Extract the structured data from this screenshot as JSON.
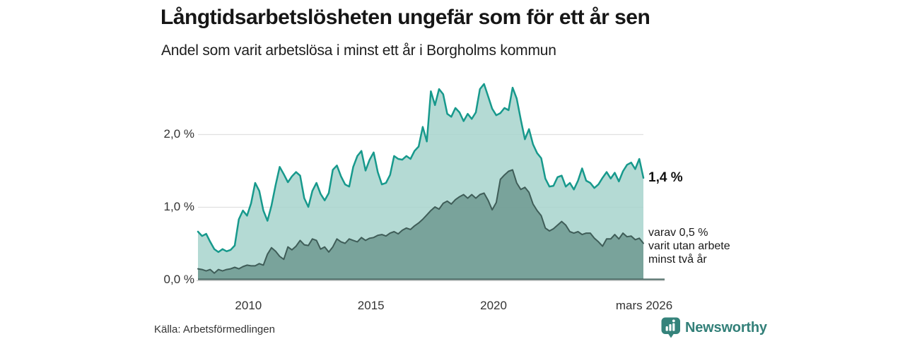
{
  "header": {
    "title": "Långtidsarbetslösheten ungefär som för ett år sen",
    "subtitle": "Andel som varit arbetslösa i minst ett år i Borgholms kommun"
  },
  "annotations": {
    "last_value_label": "1,4 %",
    "secondary_label_lines": [
      "varav 0,5 %",
      "varit utan arbete",
      "minst två år"
    ]
  },
  "footer": {
    "source": "Källa: Arbetsförmedlingen",
    "brand_name": "Newsworthy"
  },
  "colors": {
    "accent_line": "#17998c",
    "accent_fill": "rgba(167,212,205,0.85)",
    "dark_line": "#3f5d58",
    "dark_fill": "rgba(111,153,145,0.85)",
    "grid": "#e0e0e0",
    "axis": "#46635e",
    "axis_shadow": "#c8c8c8",
    "brand": "#338079",
    "text": "#333333"
  },
  "chart_data": {
    "type": "area",
    "title": "Långtidsarbetslösheten ungefär som för ett år sen",
    "subtitle": "Andel som varit arbetslösa i minst ett år i Borgholms kommun",
    "unit": "%",
    "x_start_year": 2008.0,
    "x_end_year": 2026.17,
    "x_ticks": [
      {
        "label": "2010",
        "year": 2010
      },
      {
        "label": "2015",
        "year": 2015
      },
      {
        "label": "2020",
        "year": 2020
      },
      {
        "label": "mars 2026",
        "year": 2026.17
      }
    ],
    "y_ticks": [
      {
        "label": "0,0 %",
        "value": 0
      },
      {
        "label": "1,0 %",
        "value": 1
      },
      {
        "label": "2,0 %",
        "value": 2
      }
    ],
    "ylim": [
      0,
      2.78
    ],
    "grid": true,
    "legend_position": "right-annotations",
    "series": [
      {
        "name": "Andel som varit arbetslösa i minst ett år",
        "last_value": 1.4,
        "values": [
          0.66,
          0.6,
          0.63,
          0.52,
          0.42,
          0.38,
          0.42,
          0.39,
          0.41,
          0.47,
          0.83,
          0.95,
          0.88,
          1.05,
          1.33,
          1.22,
          0.95,
          0.81,
          1.02,
          1.3,
          1.55,
          1.45,
          1.34,
          1.42,
          1.48,
          1.43,
          1.12,
          1.0,
          1.22,
          1.33,
          1.18,
          1.09,
          1.19,
          1.51,
          1.57,
          1.42,
          1.31,
          1.28,
          1.55,
          1.7,
          1.77,
          1.5,
          1.65,
          1.75,
          1.48,
          1.31,
          1.33,
          1.44,
          1.7,
          1.66,
          1.65,
          1.7,
          1.66,
          1.77,
          1.83,
          2.1,
          1.9,
          2.59,
          2.4,
          2.62,
          2.55,
          2.28,
          2.24,
          2.36,
          2.3,
          2.18,
          2.28,
          2.21,
          2.3,
          2.62,
          2.69,
          2.52,
          2.35,
          2.26,
          2.29,
          2.36,
          2.33,
          2.64,
          2.49,
          2.2,
          1.93,
          2.07,
          1.86,
          1.74,
          1.67,
          1.39,
          1.28,
          1.29,
          1.41,
          1.43,
          1.28,
          1.33,
          1.24,
          1.36,
          1.53,
          1.36,
          1.33,
          1.26,
          1.31,
          1.4,
          1.48,
          1.39,
          1.47,
          1.35,
          1.49,
          1.58,
          1.61,
          1.52,
          1.66,
          1.4
        ]
      },
      {
        "name": "varav utan arbete minst två år",
        "last_value": 0.5,
        "values": [
          0.15,
          0.14,
          0.12,
          0.14,
          0.09,
          0.14,
          0.12,
          0.14,
          0.15,
          0.17,
          0.15,
          0.18,
          0.2,
          0.19,
          0.19,
          0.22,
          0.2,
          0.35,
          0.44,
          0.39,
          0.32,
          0.28,
          0.45,
          0.41,
          0.46,
          0.54,
          0.48,
          0.47,
          0.56,
          0.54,
          0.42,
          0.45,
          0.38,
          0.45,
          0.56,
          0.52,
          0.5,
          0.56,
          0.54,
          0.52,
          0.58,
          0.54,
          0.57,
          0.58,
          0.61,
          0.62,
          0.6,
          0.64,
          0.66,
          0.63,
          0.68,
          0.71,
          0.69,
          0.74,
          0.78,
          0.83,
          0.89,
          0.95,
          1.0,
          0.97,
          1.05,
          1.08,
          1.04,
          1.1,
          1.14,
          1.17,
          1.12,
          1.17,
          1.12,
          1.17,
          1.19,
          1.09,
          0.96,
          1.06,
          1.38,
          1.44,
          1.49,
          1.51,
          1.33,
          1.24,
          1.27,
          1.2,
          1.04,
          0.95,
          0.88,
          0.71,
          0.67,
          0.7,
          0.75,
          0.8,
          0.75,
          0.66,
          0.64,
          0.66,
          0.62,
          0.64,
          0.64,
          0.57,
          0.52,
          0.46,
          0.56,
          0.56,
          0.62,
          0.56,
          0.64,
          0.59,
          0.6,
          0.55,
          0.57,
          0.5
        ]
      }
    ]
  }
}
